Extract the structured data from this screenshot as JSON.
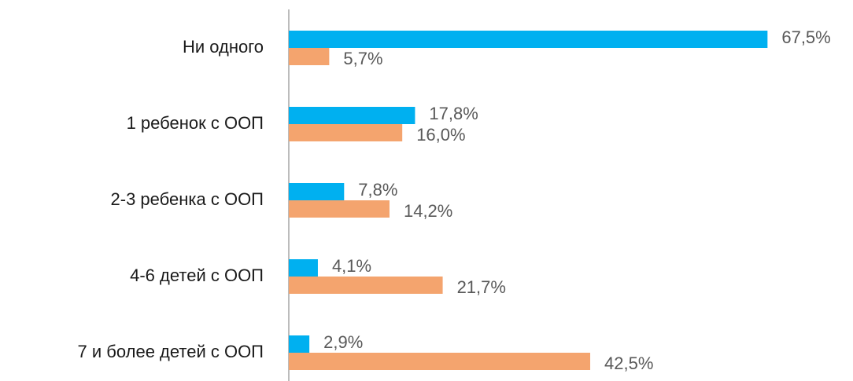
{
  "chart_data": {
    "type": "hbar",
    "categories": [
      "Ни одного",
      "1 ребенок с ООП",
      "2-3 ребенка с ООП",
      "4-6 детей с ООП",
      "7 и более детей с ООП"
    ],
    "series": [
      {
        "color": "#00b0f0",
        "values": [
          67.5,
          17.8,
          7.8,
          4.1,
          2.9
        ],
        "value_labels": [
          "67,5%",
          "17,8%",
          "7,8%",
          "4,1%",
          "2,9%"
        ]
      },
      {
        "color": "#f4a46e",
        "values": [
          5.7,
          16.0,
          14.2,
          21.7,
          42.5
        ],
        "value_labels": [
          "5,7%",
          "16,0%",
          "14,2%",
          "21,7%",
          "42,5%"
        ]
      }
    ],
    "xlim": [
      0,
      79
    ]
  }
}
